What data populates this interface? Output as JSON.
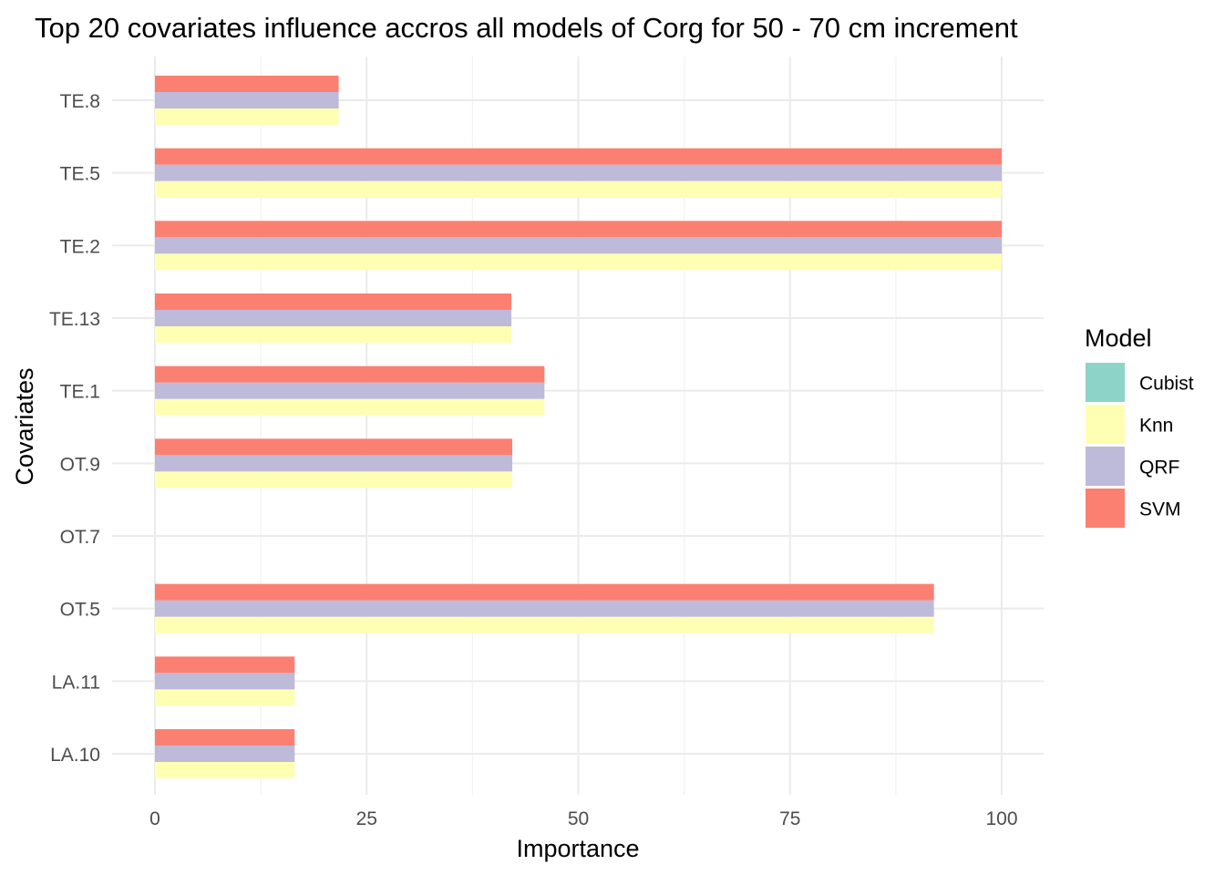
{
  "chart_data": {
    "type": "bar",
    "orientation": "horizontal",
    "title": "Top 20 covariates influence accros all models of Corg for 50 - 70 cm increment",
    "xlabel": "Importance",
    "ylabel": "Covariates",
    "xlim": [
      0,
      105
    ],
    "xticks": [
      0,
      25,
      50,
      75,
      100
    ],
    "grid": true,
    "legend_position": "right",
    "legend_title": "Model",
    "categories": [
      "LA.10",
      "LA.11",
      "OT.5",
      "OT.7",
      "OT.9",
      "TE.1",
      "TE.13",
      "TE.2",
      "TE.5",
      "TE.8"
    ],
    "series": [
      {
        "name": "Cubist",
        "color": "#8dd3c7",
        "values": [
          null,
          null,
          null,
          null,
          null,
          null,
          null,
          null,
          null,
          null
        ]
      },
      {
        "name": "Knn",
        "color": "#ffffb3",
        "values": [
          16.5,
          16.5,
          92,
          null,
          42.2,
          46,
          42.1,
          100,
          100,
          21.7
        ]
      },
      {
        "name": "QRF",
        "color": "#bebada",
        "values": [
          16.5,
          16.5,
          92,
          null,
          42.2,
          46,
          42.1,
          100,
          100,
          21.7
        ]
      },
      {
        "name": "SVM",
        "color": "#fb8072",
        "values": [
          16.5,
          16.5,
          92,
          null,
          42.2,
          46,
          42.1,
          100,
          100,
          21.7
        ]
      }
    ]
  }
}
